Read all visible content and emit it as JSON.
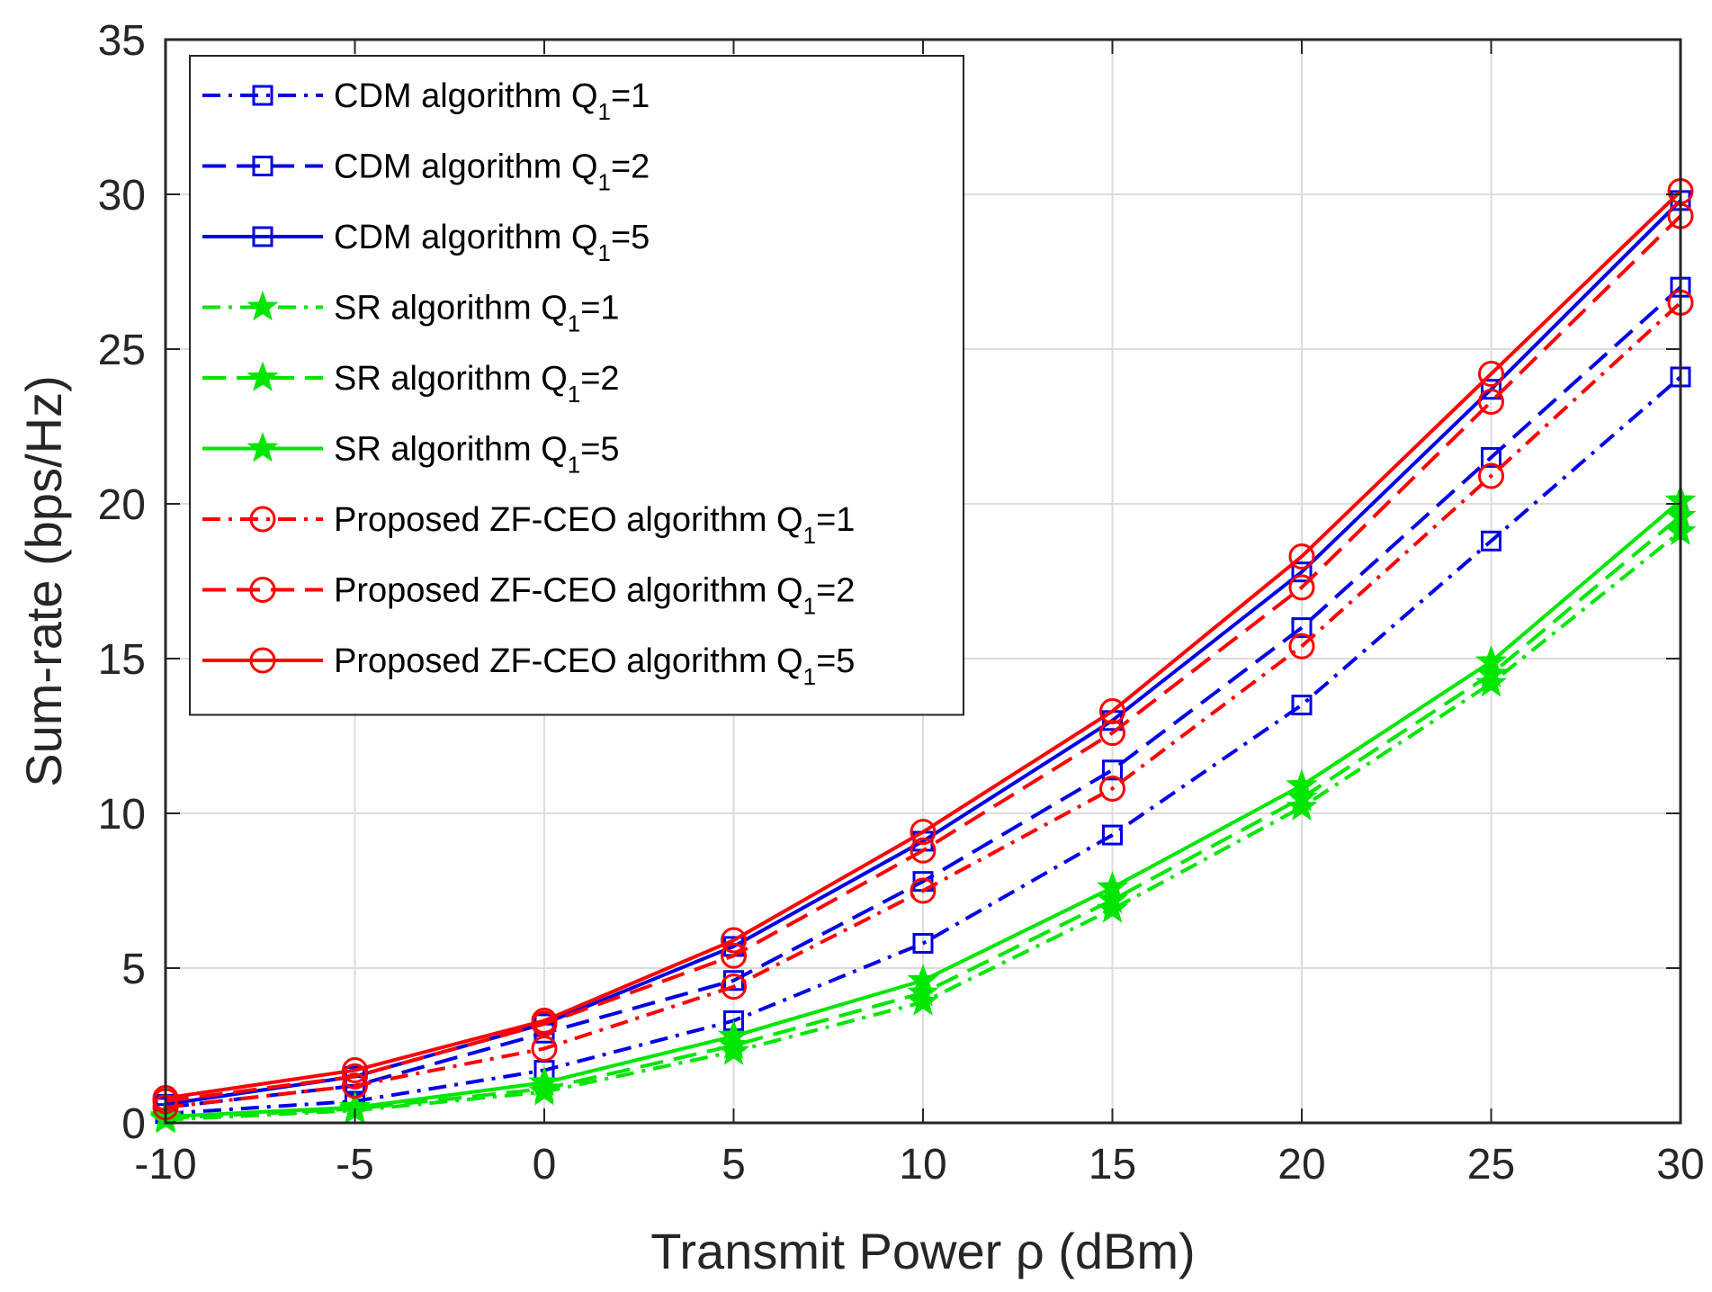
{
  "chart_data": {
    "type": "line",
    "title": "",
    "xlabel": "Transmit Power ρ (dBm)",
    "ylabel": "Sum-rate (bps/Hz)",
    "x": [
      -10,
      -5,
      0,
      5,
      10,
      15,
      20,
      25,
      30
    ],
    "xlim": [
      -10,
      30
    ],
    "ylim": [
      0,
      35
    ],
    "xticks": [
      "-10",
      "-5",
      "0",
      "5",
      "10",
      "15",
      "20",
      "25",
      "30"
    ],
    "yticks": [
      "0",
      "5",
      "10",
      "15",
      "20",
      "25",
      "30",
      "35"
    ],
    "grid": true,
    "legend_position": "top-left",
    "series": [
      {
        "name": "CDM algorithm Q1=1",
        "label_main": "CDM algorithm Q",
        "label_sub": "1",
        "label_tail": "=1",
        "color": "#0000e6",
        "dash": "dashdot",
        "marker": "square",
        "values": [
          0.3,
          0.7,
          1.7,
          3.3,
          5.8,
          9.3,
          13.5,
          18.8,
          24.1
        ]
      },
      {
        "name": "CDM algorithm Q1=2",
        "label_main": "CDM algorithm Q",
        "label_sub": "1",
        "label_tail": "=2",
        "color": "#0000e6",
        "dash": "dashed",
        "marker": "square",
        "values": [
          0.5,
          1.2,
          2.9,
          4.6,
          7.8,
          11.4,
          16.0,
          21.5,
          27.0
        ]
      },
      {
        "name": "CDM algorithm Q1=5",
        "label_main": "CDM algorithm Q",
        "label_sub": "1",
        "label_tail": "=5",
        "color": "#0000e6",
        "dash": "solid",
        "marker": "square",
        "values": [
          0.6,
          1.5,
          3.2,
          5.7,
          9.1,
          13.0,
          17.8,
          23.7,
          29.8
        ]
      },
      {
        "name": "SR algorithm Q1=1",
        "label_main": "SR algorithm Q",
        "label_sub": "1",
        "label_tail": "=1",
        "color": "#00e600",
        "dash": "dashdot",
        "marker": "star",
        "values": [
          0.1,
          0.4,
          1.0,
          2.3,
          3.9,
          6.9,
          10.2,
          14.2,
          19.1
        ]
      },
      {
        "name": "SR algorithm Q1=2",
        "label_main": "SR algorithm Q",
        "label_sub": "1",
        "label_tail": "=2",
        "color": "#00e600",
        "dash": "dashed",
        "marker": "star",
        "values": [
          0.15,
          0.45,
          1.1,
          2.5,
          4.2,
          7.2,
          10.5,
          14.5,
          19.6
        ]
      },
      {
        "name": "SR algorithm Q1=5",
        "label_main": "SR algorithm Q",
        "label_sub": "1",
        "label_tail": "=5",
        "color": "#00e600",
        "dash": "solid",
        "marker": "star",
        "values": [
          0.2,
          0.5,
          1.3,
          2.8,
          4.6,
          7.6,
          10.9,
          14.9,
          20.1
        ]
      },
      {
        "name": "Proposed ZF-CEO algorithm Q1=1",
        "label_main": "Proposed ZF-CEO algorithm Q",
        "label_sub": "1",
        "label_tail": "=1",
        "color": "#ff0000",
        "dash": "dashdot",
        "marker": "circle",
        "values": [
          0.5,
          1.2,
          2.4,
          4.4,
          7.5,
          10.8,
          15.4,
          20.9,
          26.5
        ]
      },
      {
        "name": "Proposed ZF-CEO algorithm Q1=2",
        "label_main": "Proposed ZF-CEO algorithm Q",
        "label_sub": "1",
        "label_tail": "=2",
        "color": "#ff0000",
        "dash": "dashed",
        "marker": "circle",
        "values": [
          0.7,
          1.5,
          3.2,
          5.4,
          8.8,
          12.6,
          17.3,
          23.3,
          29.3
        ]
      },
      {
        "name": "Proposed ZF-CEO algorithm Q1=5",
        "label_main": "Proposed ZF-CEO algorithm Q",
        "label_sub": "1",
        "label_tail": "=5",
        "color": "#ff0000",
        "dash": "solid",
        "marker": "circle",
        "values": [
          0.8,
          1.7,
          3.3,
          5.9,
          9.4,
          13.3,
          18.3,
          24.2,
          30.1
        ]
      }
    ]
  }
}
